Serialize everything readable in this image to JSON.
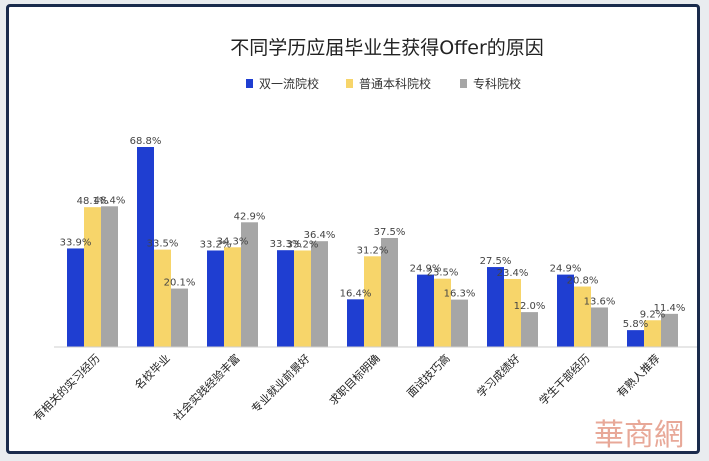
{
  "chart_data": {
    "type": "bar",
    "title": "不同学历应届毕业生获得Offer的原因",
    "categories": [
      "有相关的实习经历",
      "名校毕业",
      "社会实践经验丰富",
      "专业就业前景好",
      "求职目标明确",
      "面试技巧高",
      "学习成绩好",
      "学生干部经历",
      "有熟人推荐"
    ],
    "series": [
      {
        "name": "双一流院校",
        "color": "#1f3ed1",
        "values": [
          33.9,
          68.8,
          33.2,
          33.3,
          16.4,
          24.9,
          27.5,
          24.9,
          5.8
        ],
        "labels": [
          "33.9%",
          "68.8%",
          "33.2%",
          "33.3%",
          "16.4%",
          "24.9%",
          "27.5%",
          "24.9%",
          "5.8%"
        ]
      },
      {
        "name": "普通本科院校",
        "color": "#f7d56a",
        "values": [
          48.1,
          33.5,
          34.3,
          33.2,
          31.2,
          23.5,
          23.4,
          20.8,
          9.2
        ],
        "labels": [
          "48.1%",
          "33.5%",
          "34.3%",
          "33.2%",
          "31.2%",
          "23.5%",
          "23.4%",
          "20.8%",
          "9.2%"
        ]
      },
      {
        "name": "专科院校",
        "color": "#a6a6a6",
        "values": [
          48.4,
          20.1,
          42.9,
          36.4,
          37.5,
          16.3,
          12.0,
          13.6,
          11.4
        ],
        "labels": [
          "48.4%",
          "20.1%",
          "42.9%",
          "36.4%",
          "37.5%",
          "16.3%",
          "12.0%",
          "13.6%",
          "11.4%"
        ]
      }
    ],
    "ylim": [
      0,
      72
    ],
    "legend": "top",
    "grid": false
  },
  "watermark_text": "華商網"
}
